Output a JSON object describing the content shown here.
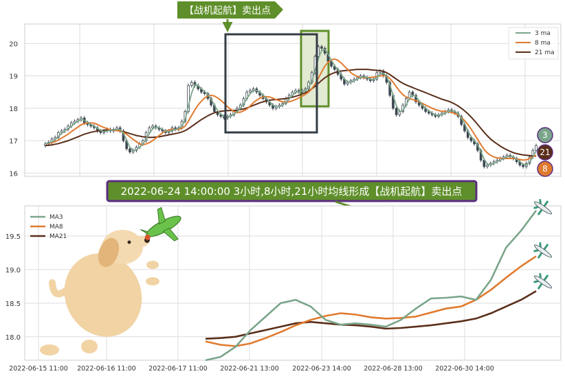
{
  "colors": {
    "ma3": "#7aa58a",
    "ma8": "#e07a2e",
    "ma21": "#5a2e1a",
    "candle_up": "#ffffff",
    "candle_down": "#3b4650",
    "banner_fill": "#5f8f2a",
    "banner_text": "#ffffff",
    "title_fill": "#5f8f2a",
    "title_border": "#5b2d82",
    "highlight_fill": "#e2ead2",
    "highlight_border": "#5f8f2a",
    "zoom_box": "#333c45",
    "arrow": "#5f8f2a"
  },
  "banner": {
    "text": "【战机起航】卖出点"
  },
  "title": {
    "text": "2022-06-24 14:00:00 3小时,8小时,21小时均线形成【战机起航】卖出点"
  },
  "badges": [
    {
      "label": "3",
      "series": "ma3"
    },
    {
      "label": "21",
      "series": "ma21"
    },
    {
      "label": "8",
      "series": "ma8"
    }
  ],
  "chart_data": [
    {
      "type": "candlestick",
      "ylim": [
        15.9,
        20.6
      ],
      "yticks": [
        "20",
        "19",
        "18",
        "17",
        "16"
      ],
      "grid": true,
      "legend": {
        "placement": "top-right",
        "entries": [
          "3 ma",
          "8 ma",
          "21 ma"
        ]
      },
      "candles_close": [
        16.9,
        16.95,
        17.05,
        17.1,
        17.25,
        17.3,
        17.35,
        17.45,
        17.55,
        17.6,
        17.65,
        17.7,
        17.55,
        17.5,
        17.45,
        17.4,
        17.3,
        17.25,
        17.3,
        17.35,
        17.3,
        17.35,
        17.4,
        17.3,
        17.0,
        16.75,
        16.65,
        16.7,
        16.8,
        16.9,
        17.0,
        17.25,
        17.4,
        17.45,
        17.4,
        17.35,
        17.3,
        17.25,
        17.3,
        17.4,
        17.35,
        17.4,
        17.6,
        17.9,
        18.7,
        18.8,
        18.7,
        18.6,
        18.5,
        18.45,
        18.3,
        18.1,
        17.9,
        17.8,
        17.75,
        17.7,
        17.75,
        17.8,
        17.9,
        18.0,
        18.1,
        18.3,
        18.5,
        18.55,
        18.6,
        18.5,
        18.4,
        18.3,
        18.2,
        18.1,
        18.0,
        18.05,
        18.1,
        18.15,
        18.3,
        18.4,
        18.5,
        18.55,
        18.5,
        18.55,
        18.6,
        18.8,
        19.1,
        19.6,
        19.9,
        19.85,
        19.7,
        19.45,
        19.3,
        19.2,
        19.05,
        18.9,
        18.75,
        18.8,
        18.85,
        18.9,
        18.95,
        19.0,
        18.95,
        18.9,
        18.85,
        18.9,
        19.1,
        19.15,
        19.0,
        18.8,
        18.4,
        18.0,
        17.8,
        17.9,
        18.1,
        18.3,
        18.5,
        18.4,
        18.2,
        18.1,
        18.0,
        17.9,
        17.85,
        17.8,
        17.75,
        17.8,
        17.85,
        17.9,
        17.95,
        17.9,
        17.85,
        17.75,
        17.5,
        17.3,
        17.1,
        17.0,
        16.9,
        16.7,
        16.4,
        16.2,
        16.25,
        16.3,
        16.35,
        16.4,
        16.45,
        16.5,
        16.55,
        16.5,
        16.45,
        16.35,
        16.25,
        16.2,
        16.3,
        16.5,
        16.7,
        16.85
      ],
      "ma3": [
        16.9,
        16.93,
        16.97,
        17.03,
        17.13,
        17.22,
        17.3,
        17.37,
        17.45,
        17.53,
        17.6,
        17.65,
        17.63,
        17.58,
        17.5,
        17.45,
        17.38,
        17.32,
        17.28,
        17.3,
        17.32,
        17.33,
        17.35,
        17.35,
        17.23,
        17.02,
        16.8,
        16.7,
        16.72,
        16.8,
        16.9,
        17.05,
        17.22,
        17.37,
        17.42,
        17.4,
        17.35,
        17.3,
        17.28,
        17.32,
        17.35,
        17.38,
        17.45,
        17.63,
        18.07,
        18.47,
        18.73,
        18.7,
        18.6,
        18.52,
        18.42,
        18.28,
        18.1,
        17.93,
        17.82,
        17.75,
        17.73,
        17.75,
        17.82,
        17.9,
        18.0,
        18.13,
        18.3,
        18.45,
        18.55,
        18.55,
        18.5,
        18.4,
        18.3,
        18.2,
        18.1,
        18.05,
        18.05,
        18.1,
        18.18,
        18.28,
        18.4,
        18.48,
        18.52,
        18.53,
        18.55,
        18.65,
        18.83,
        19.17,
        19.53,
        19.78,
        19.82,
        19.67,
        19.48,
        19.32,
        19.18,
        19.05,
        18.9,
        18.82,
        18.8,
        18.85,
        18.9,
        18.95,
        18.97,
        18.95,
        18.9,
        18.88,
        18.95,
        19.05,
        19.08,
        18.98,
        18.73,
        18.4,
        18.07,
        17.9,
        17.93,
        18.1,
        18.3,
        18.4,
        18.37,
        18.23,
        18.1,
        18.0,
        17.92,
        17.85,
        17.8,
        17.78,
        17.8,
        17.85,
        17.9,
        17.92,
        17.9,
        17.83,
        17.7,
        17.52,
        17.3,
        17.13,
        17.0,
        16.87,
        16.67,
        16.43,
        16.28,
        16.25,
        16.3,
        16.35,
        16.4,
        16.45,
        16.5,
        16.52,
        16.5,
        16.43,
        16.35,
        16.27,
        16.25,
        16.33,
        16.5,
        16.68
      ],
      "ma8": [
        16.9,
        16.92,
        16.94,
        16.97,
        17.02,
        17.08,
        17.14,
        17.2,
        17.28,
        17.35,
        17.42,
        17.49,
        17.53,
        17.55,
        17.55,
        17.54,
        17.5,
        17.45,
        17.41,
        17.37,
        17.34,
        17.32,
        17.31,
        17.3,
        17.26,
        17.2,
        17.12,
        17.04,
        16.97,
        16.9,
        16.88,
        16.9,
        16.94,
        17.0,
        17.08,
        17.16,
        17.24,
        17.3,
        17.33,
        17.35,
        17.35,
        17.35,
        17.38,
        17.45,
        17.6,
        17.78,
        17.95,
        18.1,
        18.22,
        18.32,
        18.38,
        18.4,
        18.38,
        18.32,
        18.25,
        18.15,
        18.05,
        17.97,
        17.9,
        17.87,
        17.88,
        17.92,
        17.98,
        18.07,
        18.17,
        18.25,
        18.31,
        18.35,
        18.36,
        18.35,
        18.31,
        18.27,
        18.23,
        18.2,
        18.19,
        18.2,
        18.23,
        18.27,
        18.32,
        18.37,
        18.43,
        18.5,
        18.6,
        18.75,
        18.93,
        19.12,
        19.3,
        19.42,
        19.5,
        19.52,
        19.48,
        19.4,
        19.3,
        19.2,
        19.1,
        19.03,
        18.98,
        18.95,
        18.94,
        18.94,
        18.95,
        18.96,
        18.98,
        19.0,
        19.01,
        18.99,
        18.92,
        18.8,
        18.66,
        18.53,
        18.42,
        18.35,
        18.3,
        18.27,
        18.24,
        18.2,
        18.15,
        18.1,
        18.05,
        18.0,
        17.96,
        17.93,
        17.91,
        17.9,
        17.89,
        17.87,
        17.84,
        17.8,
        17.72,
        17.62,
        17.5,
        17.36,
        17.2,
        17.04,
        16.88,
        16.73,
        16.62,
        16.55,
        16.5,
        16.47,
        16.46,
        16.45,
        16.45,
        16.45,
        16.45,
        16.44,
        16.42,
        16.4,
        16.41,
        16.45,
        16.5,
        16.55
      ],
      "ma21": [
        16.85,
        16.86,
        16.87,
        16.89,
        16.91,
        16.94,
        16.97,
        17.0,
        17.04,
        17.08,
        17.12,
        17.16,
        17.2,
        17.23,
        17.26,
        17.28,
        17.3,
        17.31,
        17.32,
        17.33,
        17.33,
        17.33,
        17.32,
        17.3,
        17.28,
        17.25,
        17.22,
        17.19,
        17.16,
        17.14,
        17.12,
        17.11,
        17.1,
        17.1,
        17.11,
        17.12,
        17.14,
        17.16,
        17.18,
        17.2,
        17.22,
        17.24,
        17.27,
        17.31,
        17.37,
        17.44,
        17.51,
        17.58,
        17.65,
        17.71,
        17.77,
        17.82,
        17.86,
        17.89,
        17.91,
        17.92,
        17.93,
        17.93,
        17.93,
        17.94,
        17.96,
        17.98,
        18.01,
        18.05,
        18.09,
        18.13,
        18.17,
        18.2,
        18.23,
        18.25,
        18.26,
        18.27,
        18.28,
        18.29,
        18.3,
        18.32,
        18.34,
        18.37,
        18.4,
        18.44,
        18.48,
        18.53,
        18.6,
        18.68,
        18.77,
        18.86,
        18.94,
        19.01,
        19.06,
        19.1,
        19.13,
        19.15,
        19.16,
        19.17,
        19.18,
        19.19,
        19.2,
        19.2,
        19.2,
        19.2,
        19.19,
        19.18,
        19.17,
        19.16,
        19.14,
        19.1,
        19.04,
        18.97,
        18.9,
        18.83,
        18.77,
        18.72,
        18.68,
        18.64,
        18.6,
        18.56,
        18.52,
        18.48,
        18.44,
        18.4,
        18.36,
        18.32,
        18.28,
        18.25,
        18.22,
        18.18,
        18.13,
        18.07,
        18.0,
        17.92,
        17.83,
        17.73,
        17.62,
        17.5,
        17.38,
        17.26,
        17.15,
        17.05,
        16.97,
        16.9,
        16.83,
        16.77,
        16.72,
        16.67,
        16.63,
        16.6,
        16.58,
        16.56,
        16.55,
        16.54,
        16.53,
        16.52
      ]
    },
    {
      "type": "line",
      "ylim": [
        17.65,
        19.95
      ],
      "yticks": [
        "19.5",
        "19.0",
        "18.5",
        "18.0"
      ],
      "xticks": [
        "2022-06-15 11:00",
        "2022-06-16 11:00",
        "2022-06-17 11:00",
        "2022-06-21 13:00",
        "2022-06-23 14:00",
        "2022-06-28 13:00",
        "2022-06-30 14:00"
      ],
      "grid": true,
      "legend": {
        "placement": "top-left",
        "entries": [
          "MA3",
          "MA8",
          "MA21"
        ]
      },
      "series": [
        {
          "name": "MA3",
          "values": [
            17.65,
            17.7,
            17.85,
            18.1,
            18.3,
            18.5,
            18.55,
            18.45,
            18.25,
            18.18,
            18.2,
            18.18,
            18.15,
            18.25,
            18.42,
            18.57,
            18.58,
            18.6,
            18.55,
            18.85,
            19.33,
            19.58,
            19.88
          ]
        },
        {
          "name": "MA8",
          "values": [
            17.93,
            17.88,
            17.86,
            17.9,
            17.98,
            18.07,
            18.17,
            18.25,
            18.31,
            18.35,
            18.33,
            18.29,
            18.27,
            18.28,
            18.3,
            18.36,
            18.42,
            18.45,
            18.55,
            18.7,
            18.88,
            19.05,
            19.2
          ]
        },
        {
          "name": "MA21",
          "values": [
            17.97,
            17.98,
            18.0,
            18.05,
            18.1,
            18.15,
            18.2,
            18.22,
            18.2,
            18.18,
            18.17,
            18.15,
            18.12,
            18.13,
            18.15,
            18.17,
            18.2,
            18.23,
            18.27,
            18.35,
            18.45,
            18.55,
            18.68
          ]
        }
      ]
    }
  ]
}
